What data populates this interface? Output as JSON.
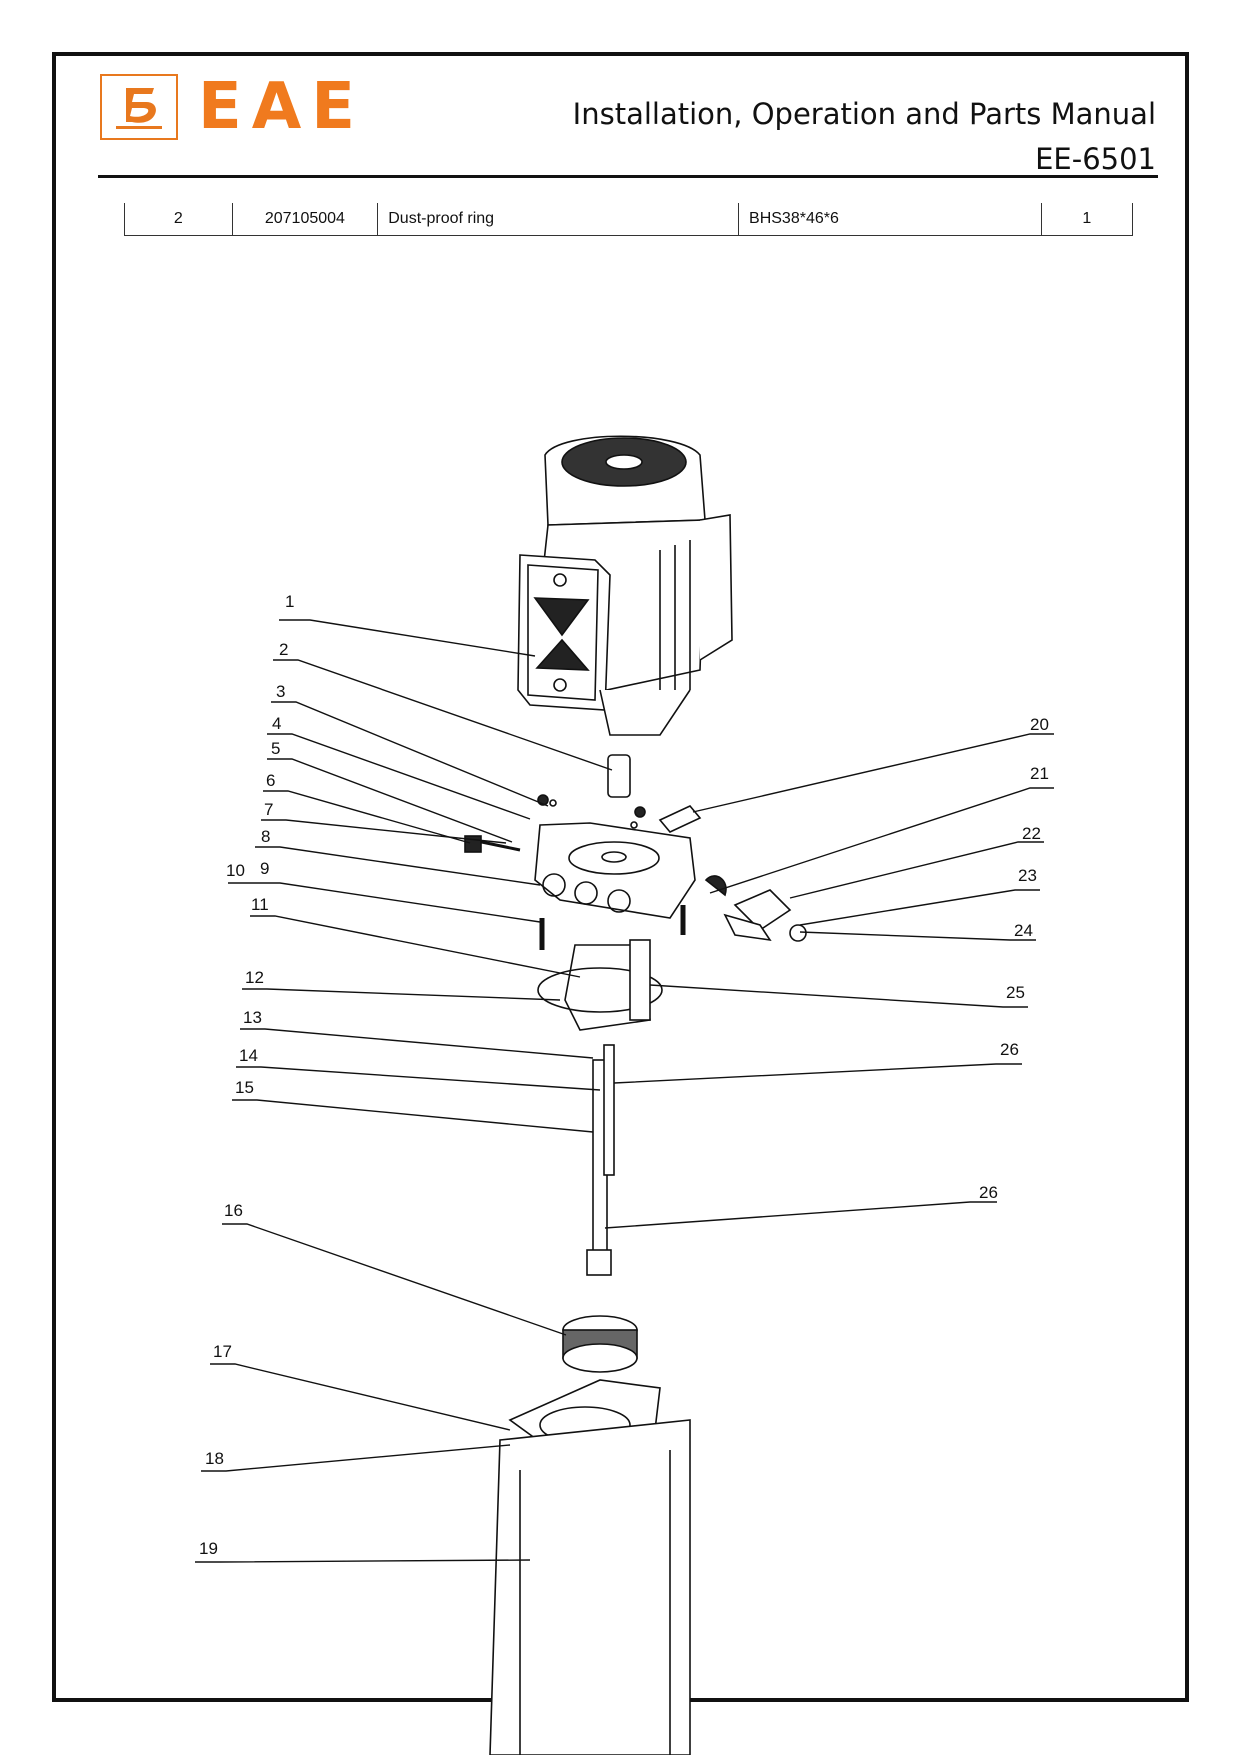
{
  "header": {
    "brand": "EAE",
    "title_line1": "Installation, Operation and Parts Manual",
    "title_line2": "EE-6501",
    "logo_icon": "eae-logo-icon"
  },
  "parts_table": {
    "rows": [
      {
        "no": "2",
        "code": "207105004",
        "description": "Dust-proof ring",
        "spec": "BHS38*46*6",
        "qty": "1"
      }
    ]
  },
  "diagram": {
    "callouts": [
      "1",
      "2",
      "3",
      "4",
      "5",
      "6",
      "7",
      "8",
      "9",
      "10",
      "11",
      "12",
      "13",
      "14",
      "15",
      "16",
      "17",
      "18",
      "19",
      "20",
      "21",
      "22",
      "23",
      "24",
      "25",
      "26",
      "26"
    ]
  }
}
